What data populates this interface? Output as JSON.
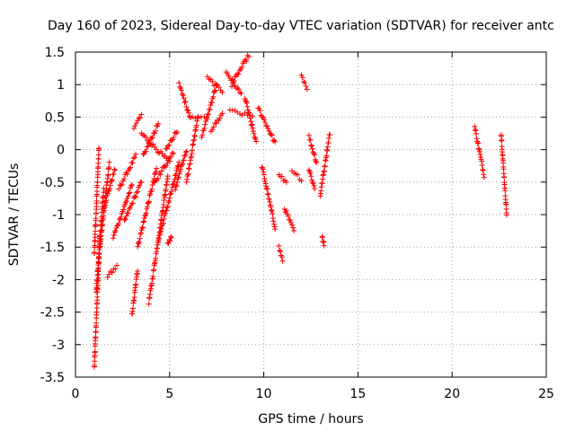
{
  "chart_data": {
    "type": "scatter",
    "title": "Day 160 of 2023, Sidereal Day-to-day VTEC variation (SDTVAR) for receiver antc",
    "xlabel": "GPS time / hours",
    "ylabel": "SDTVAR / TECUs",
    "xlim": [
      0,
      25
    ],
    "ylim": [
      -3.5,
      1.5
    ],
    "x_ticks": [
      0,
      5,
      10,
      15,
      20,
      25
    ],
    "y_ticks": [
      -3.5,
      -3,
      -2.5,
      -2,
      -1.5,
      -1,
      -0.5,
      0,
      0.5,
      1,
      1.5
    ],
    "x_tick_labels": [
      "0",
      "5",
      "10",
      "15",
      "20",
      "25"
    ],
    "y_tick_labels": [
      "-3.5",
      "-3",
      "-2.5",
      "-2",
      "-1.5",
      "-1",
      "-0.5",
      "0",
      "0.5",
      "1",
      "1.5"
    ],
    "grid": true,
    "marker": "+",
    "color": "#ff0000",
    "series": [
      {
        "name": "s1",
        "x0": 1.0,
        "x1": 1.3,
        "y0": -3.35,
        "y1": -1.3
      },
      {
        "name": "s2",
        "x0": 1.0,
        "x1": 1.25,
        "y0": -1.6,
        "y1": 0.05
      },
      {
        "name": "s3",
        "x0": 1.1,
        "x1": 1.5,
        "y0": -2.2,
        "y1": -0.6
      },
      {
        "name": "s4",
        "x0": 1.3,
        "x1": 1.8,
        "y0": -1.5,
        "y1": -0.2
      },
      {
        "name": "s5",
        "x0": 1.5,
        "x1": 2.1,
        "y0": -0.9,
        "y1": -0.3
      },
      {
        "name": "s6",
        "x0": 1.7,
        "x1": 2.2,
        "y0": -1.95,
        "y1": -1.8
      },
      {
        "name": "s7",
        "x0": 2.0,
        "x1": 3.0,
        "y0": -1.35,
        "y1": -0.55
      },
      {
        "name": "s8",
        "x0": 2.3,
        "x1": 3.2,
        "y0": -0.6,
        "y1": -0.1
      },
      {
        "name": "s9",
        "x0": 2.6,
        "x1": 3.5,
        "y0": -1.1,
        "y1": -0.5
      },
      {
        "name": "s10",
        "x0": 3.0,
        "x1": 3.3,
        "y0": -2.55,
        "y1": -1.85
      },
      {
        "name": "s11",
        "x0": 3.1,
        "x1": 3.5,
        "y0": 0.35,
        "y1": 0.55
      },
      {
        "name": "s12",
        "x0": 3.3,
        "x1": 4.3,
        "y0": -1.5,
        "y1": -0.3
      },
      {
        "name": "s13",
        "x0": 3.5,
        "x1": 5.0,
        "y0": 0.25,
        "y1": -0.2
      },
      {
        "name": "s14",
        "x0": 3.6,
        "x1": 4.4,
        "y0": -0.1,
        "y1": 0.4
      },
      {
        "name": "s15",
        "x0": 3.9,
        "x1": 4.9,
        "y0": -2.35,
        "y1": -0.4
      },
      {
        "name": "s16",
        "x0": 4.2,
        "x1": 5.2,
        "y0": -0.5,
        "y1": -0.05
      },
      {
        "name": "s17",
        "x0": 4.4,
        "x1": 5.5,
        "y0": -1.4,
        "y1": -0.2
      },
      {
        "name": "s18",
        "x0": 4.8,
        "x1": 5.4,
        "y0": 0.0,
        "y1": 0.3
      },
      {
        "name": "s19",
        "x0": 4.9,
        "x1": 5.1,
        "y0": -1.45,
        "y1": -1.35
      },
      {
        "name": "s20",
        "x0": 5.3,
        "x1": 5.9,
        "y0": -0.6,
        "y1": 0.0
      },
      {
        "name": "s21",
        "x0": 5.5,
        "x1": 6.1,
        "y0": 1.0,
        "y1": 0.5
      },
      {
        "name": "s22",
        "x0": 5.9,
        "x1": 6.5,
        "y0": -0.5,
        "y1": 0.5
      },
      {
        "name": "s23",
        "x0": 6.2,
        "x1": 7.0,
        "y0": 0.5,
        "y1": 0.5
      },
      {
        "name": "s24",
        "x0": 6.7,
        "x1": 7.5,
        "y0": 0.2,
        "y1": 1.0
      },
      {
        "name": "s25",
        "x0": 7.0,
        "x1": 7.8,
        "y0": 1.1,
        "y1": 0.9
      },
      {
        "name": "s26",
        "x0": 7.2,
        "x1": 7.8,
        "y0": 0.3,
        "y1": 0.55
      },
      {
        "name": "s27",
        "x0": 8.0,
        "x1": 8.8,
        "y0": 1.2,
        "y1": 0.85
      },
      {
        "name": "s28",
        "x0": 8.3,
        "x1": 9.2,
        "y0": 1.0,
        "y1": 1.45
      },
      {
        "name": "s29",
        "x0": 8.2,
        "x1": 9.4,
        "y0": 0.6,
        "y1": 0.5
      },
      {
        "name": "s30",
        "x0": 9.0,
        "x1": 9.6,
        "y0": 0.8,
        "y1": 0.1
      },
      {
        "name": "s31",
        "x0": 9.7,
        "x1": 10.6,
        "y0": 0.65,
        "y1": 0.1
      },
      {
        "name": "s32",
        "x0": 9.9,
        "x1": 10.6,
        "y0": -0.25,
        "y1": -1.2
      },
      {
        "name": "s33",
        "x0": 10.8,
        "x1": 11.0,
        "y0": -1.5,
        "y1": -1.7
      },
      {
        "name": "s34",
        "x0": 10.8,
        "x1": 11.2,
        "y0": -0.4,
        "y1": -0.5
      },
      {
        "name": "s35",
        "x0": 11.1,
        "x1": 11.6,
        "y0": -0.9,
        "y1": -1.25
      },
      {
        "name": "s36",
        "x0": 11.5,
        "x1": 12.0,
        "y0": -0.35,
        "y1": -0.45
      },
      {
        "name": "s37",
        "x0": 12.0,
        "x1": 12.3,
        "y0": 1.15,
        "y1": 0.95
      },
      {
        "name": "s38",
        "x0": 12.4,
        "x1": 12.8,
        "y0": 0.2,
        "y1": -0.2
      },
      {
        "name": "s39",
        "x0": 12.4,
        "x1": 12.7,
        "y0": -0.3,
        "y1": -0.6
      },
      {
        "name": "s40",
        "x0": 13.0,
        "x1": 13.5,
        "y0": -0.7,
        "y1": 0.25
      },
      {
        "name": "s41",
        "x0": 13.1,
        "x1": 13.2,
        "y0": -1.35,
        "y1": -1.45
      },
      {
        "name": "s42",
        "x0": 21.2,
        "x1": 21.7,
        "y0": 0.35,
        "y1": -0.4
      },
      {
        "name": "s43",
        "x0": 22.6,
        "x1": 22.9,
        "y0": 0.25,
        "y1": -1.0
      }
    ]
  }
}
